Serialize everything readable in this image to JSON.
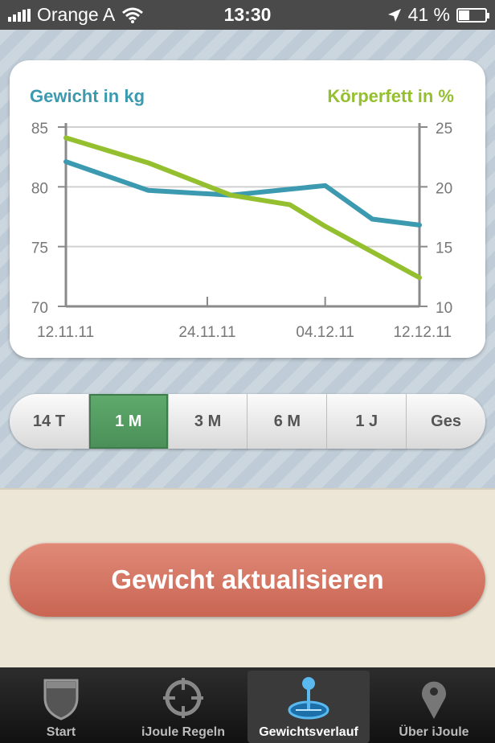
{
  "status_bar": {
    "carrier": "Orange A",
    "time": "13:30",
    "battery": "41 %",
    "battery_level": 0.41
  },
  "chart": {
    "left_axis_title": "Gewicht in kg",
    "right_axis_title": "Körperfett in %",
    "colors": {
      "weight": "#3c9ab0",
      "fat": "#94bf2f"
    }
  },
  "chart_data": {
    "type": "line",
    "x": [
      "12.11.11",
      "24.11.11",
      "04.12.11",
      "12.12.11"
    ],
    "xticks": [
      "12.11.11",
      "24.11.11",
      "04.12.11",
      "12.12.11"
    ],
    "series": [
      {
        "name": "Gewicht in kg",
        "axis": "left",
        "points": [
          [
            "12.11.11",
            82.1
          ],
          [
            "19.11.11",
            79.7
          ],
          [
            "26.11.11",
            79.3
          ],
          [
            "04.12.11",
            80.1
          ],
          [
            "08.12.11",
            77.3
          ],
          [
            "12.12.11",
            76.8
          ]
        ]
      },
      {
        "name": "Körperfett in %",
        "axis": "right",
        "points": [
          [
            "12.11.11",
            24.1
          ],
          [
            "19.11.11",
            22.0
          ],
          [
            "26.11.11",
            19.3
          ],
          [
            "01.12.11",
            18.5
          ],
          [
            "04.12.11",
            16.7
          ],
          [
            "12.12.11",
            12.4
          ]
        ]
      }
    ],
    "yleft": {
      "ticks": [
        70,
        75,
        80,
        85
      ],
      "ylim": [
        70,
        85
      ]
    },
    "yright": {
      "ticks": [
        10,
        15,
        20,
        25
      ],
      "ylim": [
        10,
        25
      ]
    },
    "grid": true
  },
  "ranges": [
    "14 T",
    "1 M",
    "3 M",
    "6 M",
    "1 J",
    "Ges"
  ],
  "active_range": "1 M",
  "update_button": "Gewicht aktualisieren",
  "tabs": [
    {
      "label": "Start",
      "icon": "shield-icon"
    },
    {
      "label": "iJoule Regeln",
      "icon": "crosshair-icon"
    },
    {
      "label": "Gewichtsverlauf",
      "icon": "joystick-icon",
      "active": true
    },
    {
      "label": "Über iJoule",
      "icon": "map-pin-icon"
    }
  ]
}
